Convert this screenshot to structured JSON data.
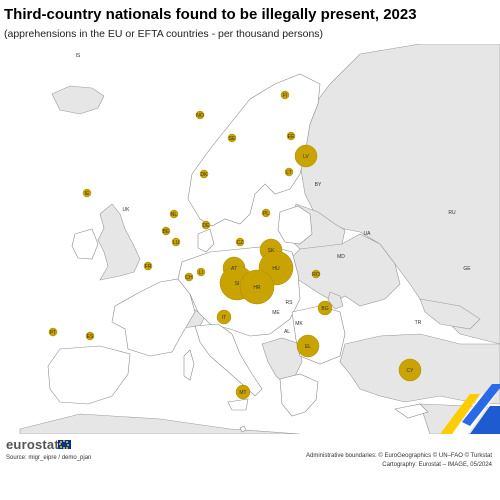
{
  "title": "Third-country nationals found to be illegally present, 2023",
  "subtitle": "(apprehensions in the EU or EFTA countries - per thousand persons)",
  "footer": {
    "logo_text": "eurostat",
    "source": "Source: migr_eipre / demo_pjan",
    "boundaries": "Administrative boundaries: © EuroGeographics © UN–FAO © Turkstat",
    "cartography": "Cartography: Eurostat – IMAGE, 05/2024"
  },
  "colors": {
    "sea": "#ffffff",
    "eu_land": "#ffffff",
    "non_eu_land": "#e6e6e6",
    "border": "#8c8c8c",
    "bubble": "#c9a400",
    "bubble_stroke": "#a98a00"
  },
  "countries": [
    {
      "code": "IS",
      "bubble": false
    },
    {
      "code": "FI",
      "bubble": true,
      "size": "small"
    },
    {
      "code": "NO",
      "bubble": true,
      "size": "small"
    },
    {
      "code": "SE",
      "bubble": true,
      "size": "small"
    },
    {
      "code": "EE",
      "bubble": true,
      "size": "small"
    },
    {
      "code": "LV",
      "bubble": true,
      "size": "large"
    },
    {
      "code": "LT",
      "bubble": true,
      "size": "small"
    },
    {
      "code": "DK",
      "bubble": true,
      "size": "small"
    },
    {
      "code": "IE",
      "bubble": true,
      "size": "small"
    },
    {
      "code": "UK",
      "bubble": false
    },
    {
      "code": "NL",
      "bubble": true,
      "size": "small"
    },
    {
      "code": "BE",
      "bubble": true,
      "size": "small"
    },
    {
      "code": "LU",
      "bubble": true,
      "size": "small"
    },
    {
      "code": "DE",
      "bubble": true,
      "size": "small"
    },
    {
      "code": "PL",
      "bubble": true,
      "size": "small"
    },
    {
      "code": "CZ",
      "bubble": true,
      "size": "small"
    },
    {
      "code": "SK",
      "bubble": true,
      "size": "large"
    },
    {
      "code": "AT",
      "bubble": true,
      "size": "large"
    },
    {
      "code": "HU",
      "bubble": true,
      "size": "very-large"
    },
    {
      "code": "SI",
      "bubble": true,
      "size": "very-large"
    },
    {
      "code": "HR",
      "bubble": true,
      "size": "very-large"
    },
    {
      "code": "CH",
      "bubble": true,
      "size": "small"
    },
    {
      "code": "LI",
      "bubble": true,
      "size": "small"
    },
    {
      "code": "FR",
      "bubble": true,
      "size": "small"
    },
    {
      "code": "PT",
      "bubble": true,
      "size": "small"
    },
    {
      "code": "ES",
      "bubble": true,
      "size": "small"
    },
    {
      "code": "IT",
      "bubble": true,
      "size": "medium"
    },
    {
      "code": "MT",
      "bubble": true,
      "size": "medium"
    },
    {
      "code": "RO",
      "bubble": true,
      "size": "small"
    },
    {
      "code": "BG",
      "bubble": true,
      "size": "medium"
    },
    {
      "code": "EL",
      "bubble": true,
      "size": "large"
    },
    {
      "code": "CY",
      "bubble": true,
      "size": "large"
    },
    {
      "code": "BY",
      "bubble": false
    },
    {
      "code": "UA",
      "bubble": false
    },
    {
      "code": "RU",
      "bubble": false
    },
    {
      "code": "MD",
      "bubble": false
    },
    {
      "code": "RS",
      "bubble": false
    },
    {
      "code": "ME",
      "bubble": false
    },
    {
      "code": "MK",
      "bubble": false
    },
    {
      "code": "AL",
      "bubble": false
    },
    {
      "code": "TR",
      "bubble": false
    },
    {
      "code": "GE",
      "bubble": false
    }
  ]
}
